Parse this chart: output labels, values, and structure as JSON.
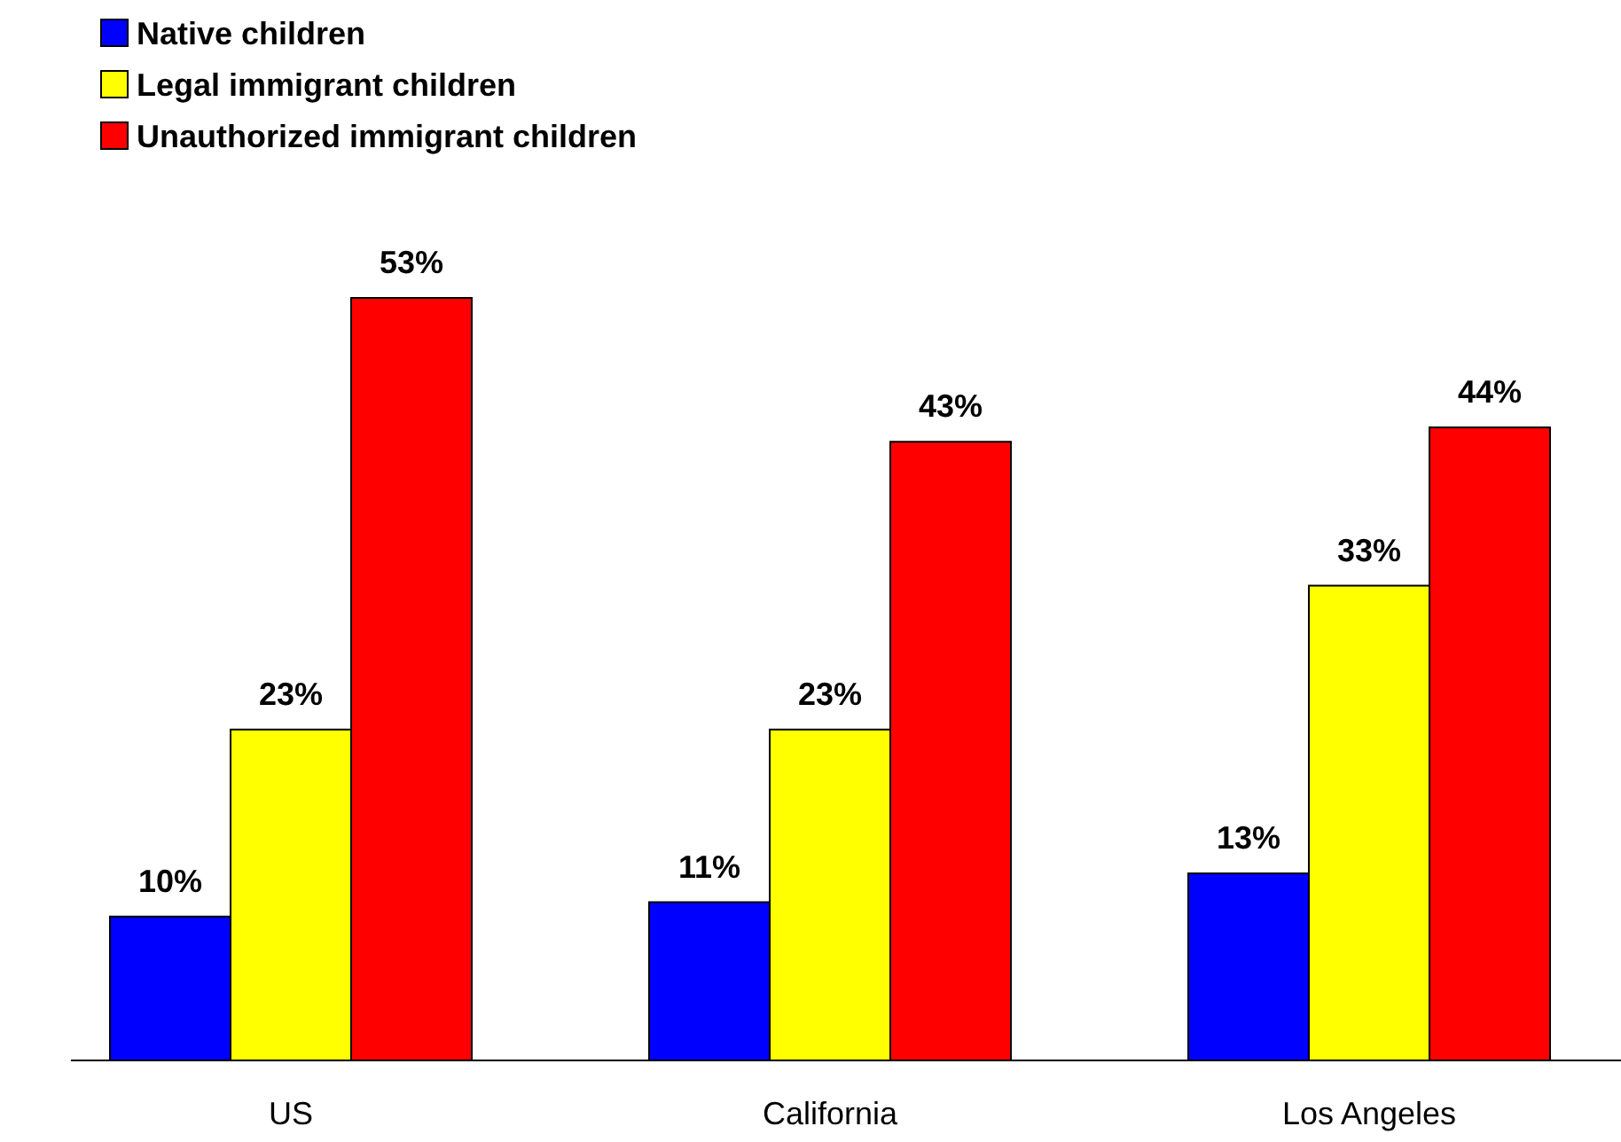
{
  "chart_data": {
    "type": "bar",
    "categories": [
      "US",
      "California",
      "Los Angeles"
    ],
    "series": [
      {
        "name": "Native children",
        "color": "#0000ff",
        "values": [
          10,
          11,
          13
        ],
        "value_labels": [
          "10%",
          "11%",
          "13%"
        ]
      },
      {
        "name": "Legal immigrant children",
        "color": "#ffff00",
        "values": [
          23,
          23,
          33
        ],
        "value_labels": [
          "23%",
          "23%",
          "33%"
        ]
      },
      {
        "name": "Unauthorized immigrant children",
        "color": "#ff0000",
        "values": [
          53,
          43,
          44
        ],
        "value_labels": [
          "53%",
          "43%",
          "44%"
        ]
      }
    ],
    "legend": "top left",
    "grid": false
  }
}
